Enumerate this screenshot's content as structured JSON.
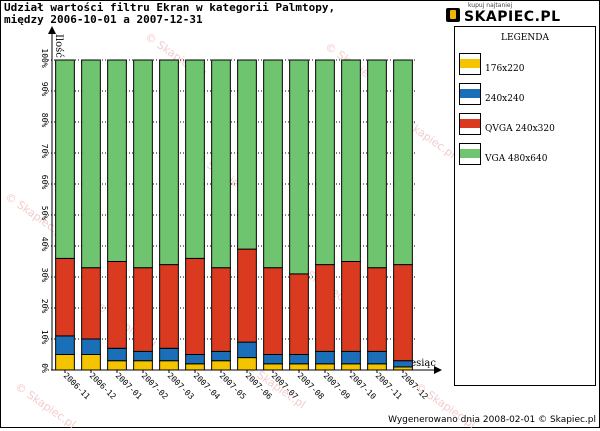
{
  "title": {
    "line1": "Udział wartości filtru Ekran w kategorii Palmtopy,",
    "line2": "między 2006-10-01 a 2007-12-31"
  },
  "logo": {
    "tagline": "kupuj najtaniej",
    "text": "SKAPIEC.PL",
    "icon": "shopping-bag-icon"
  },
  "watermark": "© Skapiec.pl",
  "footer": "Wygenerowano dnia 2008-02-01 © Skapiec.pl",
  "colors": {
    "176x220": "#f5c400",
    "240x240": "#1a6fb8",
    "QVGA 240x320": "#d93a20",
    "VGA 480x640": "#6fc46f",
    "bar_outline": "#000000"
  },
  "legend": {
    "title": "LEGENDA",
    "items": [
      {
        "label": "176x220",
        "color": "#f5c400"
      },
      {
        "label": "240x240",
        "color": "#1a6fb8"
      },
      {
        "label": "QVGA 240x320",
        "color": "#d93a20"
      },
      {
        "label": "VGA 480x640",
        "color": "#6fc46f"
      }
    ]
  },
  "chart_data": {
    "type": "bar",
    "stacked": true,
    "ylabel": "Ilość",
    "xlabel": "Miesiąc",
    "ylim": [
      0,
      100
    ],
    "yticks": [
      "0%",
      "10%",
      "20%",
      "30%",
      "40%",
      "50%",
      "60%",
      "70%",
      "80%",
      "90%",
      "100%"
    ],
    "categories": [
      "2006-11",
      "2006-12",
      "2007-01",
      "2007-02",
      "2007-03",
      "2007-04",
      "2007-05",
      "2007-06",
      "2007-07",
      "2007-08",
      "2007-09",
      "2007-10",
      "2007-11",
      "2007-12"
    ],
    "series": [
      {
        "name": "176x220",
        "color": "#f5c400",
        "values": [
          5,
          5,
          3,
          3,
          3,
          2,
          3,
          4,
          2,
          2,
          2,
          2,
          2,
          1
        ]
      },
      {
        "name": "240x240",
        "color": "#1a6fb8",
        "values": [
          6,
          5,
          4,
          3,
          4,
          3,
          3,
          5,
          3,
          3,
          4,
          4,
          4,
          2
        ]
      },
      {
        "name": "QVGA 240x320",
        "color": "#d93a20",
        "values": [
          25,
          23,
          28,
          27,
          27,
          31,
          27,
          30,
          28,
          26,
          28,
          29,
          27,
          31
        ]
      },
      {
        "name": "VGA 480x640",
        "color": "#6fc46f",
        "values": [
          64,
          67,
          65,
          67,
          66,
          64,
          67,
          61,
          67,
          69,
          66,
          65,
          67,
          66
        ]
      }
    ],
    "grid": true,
    "legend_position": "right"
  }
}
